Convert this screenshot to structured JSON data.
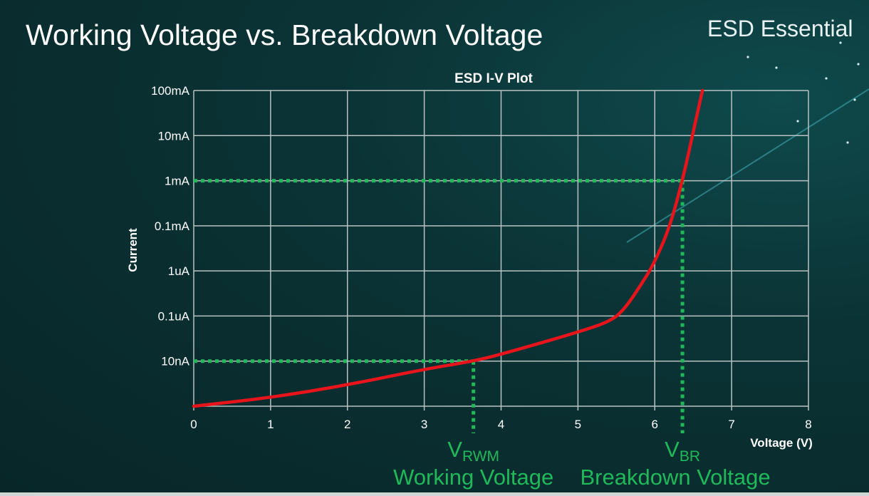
{
  "slide": {
    "title": "Working Voltage vs. Breakdown Voltage",
    "brand": "ESD Essential"
  },
  "chart_data": {
    "type": "line",
    "title": "ESD I-V Plot",
    "xlabel": "Voltage (V)",
    "ylabel": "Current",
    "xlim": [
      0,
      8
    ],
    "x_ticks": [
      "0",
      "1",
      "2",
      "3",
      "4",
      "5",
      "6",
      "7",
      "8"
    ],
    "y_scale": "log (one grid line per labeled tick)",
    "y_ticks": [
      "",
      "10nA",
      "0.1uA",
      "1uA",
      "0.1mA",
      "1mA",
      "10mA",
      "100mA"
    ],
    "grid": true,
    "series": [
      {
        "color": "#e8141c",
        "points": [
          [
            0,
            0
          ],
          [
            1,
            0.19
          ],
          [
            2,
            0.47
          ],
          [
            3,
            0.82
          ],
          [
            3.64,
            1.0
          ],
          [
            4,
            1.15
          ],
          [
            5,
            1.64
          ],
          [
            5.45,
            1.9
          ],
          [
            5.63,
            2.21
          ],
          [
            5.82,
            2.69
          ],
          [
            5.99,
            3.16
          ],
          [
            6.19,
            3.95
          ],
          [
            6.36,
            5.0
          ],
          [
            6.49,
            6.0
          ],
          [
            6.62,
            7.0
          ]
        ]
      }
    ],
    "markers": [
      {
        "voltage": 3.64,
        "level": 1,
        "current": "10nA",
        "symbol": "V",
        "subscript": "RWM",
        "label": "Working Voltage"
      },
      {
        "voltage": 6.36,
        "level": 5,
        "current": "1mA",
        "symbol": "V",
        "subscript": "BR",
        "label": "Breakdown Voltage"
      }
    ],
    "marker_color": "#1fb95a"
  }
}
